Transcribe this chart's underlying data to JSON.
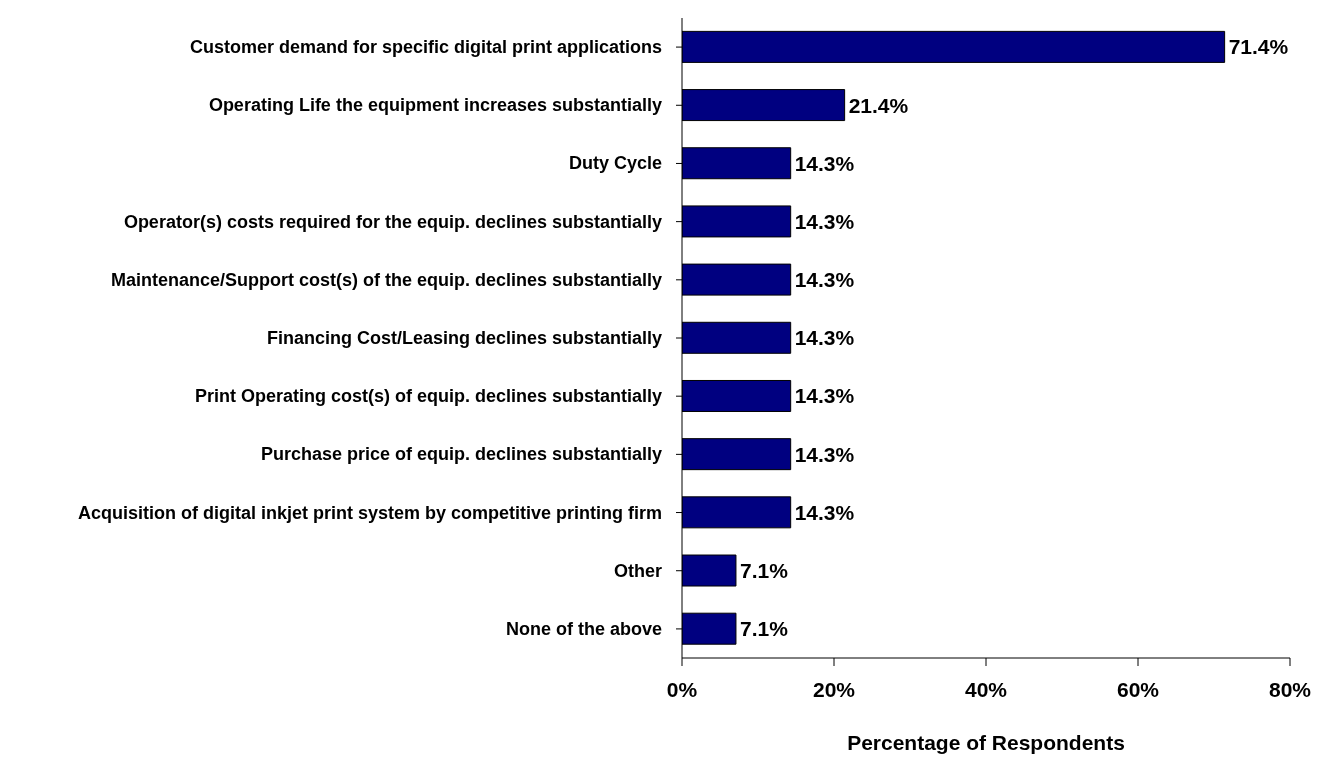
{
  "chart_data": {
    "type": "bar",
    "orientation": "horizontal",
    "categories": [
      "Customer demand for specific digital print applications",
      "Operating Life the equipment increases substantially",
      "Duty Cycle",
      "Operator(s) costs required for the equip. declines substantially",
      "Maintenance/Support cost(s) of the equip. declines substantially",
      "Financing Cost/Leasing declines substantially",
      "Print Operating cost(s) of equip. declines substantially",
      "Purchase price of equip. declines substantially",
      "Acquisition of digital inkjet print system by competitive printing firm",
      "Other",
      "None of the above"
    ],
    "values": [
      71.4,
      21.4,
      14.3,
      14.3,
      14.3,
      14.3,
      14.3,
      14.3,
      14.3,
      7.1,
      7.1
    ],
    "value_labels": [
      "71.4%",
      "21.4%",
      "14.3%",
      "14.3%",
      "14.3%",
      "14.3%",
      "14.3%",
      "14.3%",
      "14.3%",
      "7.1%",
      "7.1%"
    ],
    "color": "#000080",
    "xlabel": "Percentage of Respondents",
    "xlim": [
      0,
      80
    ],
    "xticks": [
      {
        "value": 0,
        "label": "0%"
      },
      {
        "value": 20,
        "label": "20%"
      },
      {
        "value": 40,
        "label": "40%"
      },
      {
        "value": 60,
        "label": "60%"
      },
      {
        "value": 80,
        "label": "80%"
      }
    ],
    "grid": false,
    "legend": false
  }
}
